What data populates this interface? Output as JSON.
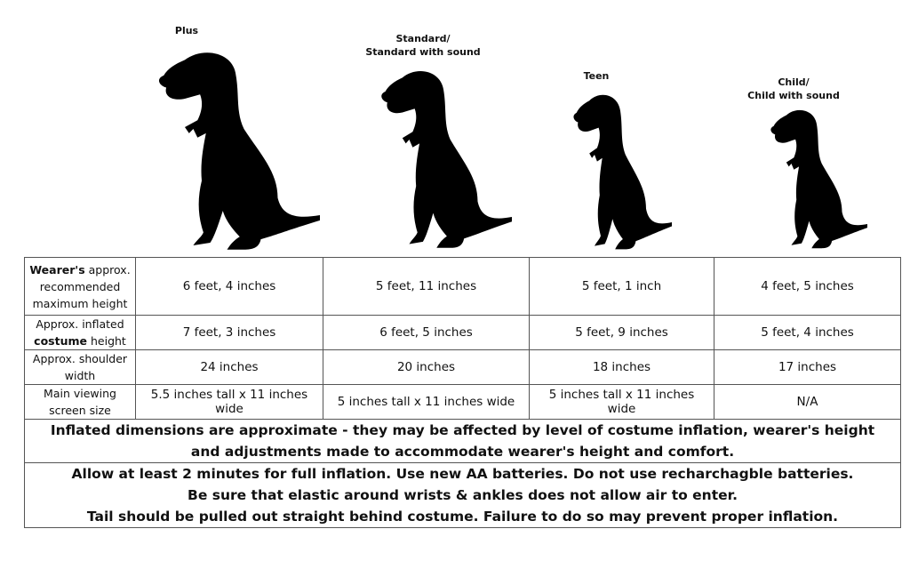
{
  "sizes": [
    {
      "label_lines": [
        "Plus"
      ]
    },
    {
      "label_lines": [
        "Standard/",
        "Standard with sound"
      ]
    },
    {
      "label_lines": [
        "Teen"
      ]
    },
    {
      "label_lines": [
        "Child/",
        "Child with sound"
      ]
    }
  ],
  "table": {
    "rows": [
      {
        "header": [
          {
            "text": "Wearer's",
            "bold": true
          },
          {
            "text": "approx. recommended maximum height",
            "bold": false
          }
        ],
        "cells": [
          "6 feet, 4 inches",
          "5 feet, 11 inches",
          "5 feet, 1 inch",
          "4 feet, 5 inches"
        ]
      },
      {
        "header": [
          {
            "text": "Approx. inflated",
            "bold": false
          },
          {
            "text": "costume",
            "bold": true
          },
          {
            "text": "height",
            "bold": false
          }
        ],
        "cells": [
          "7 feet, 3 inches",
          "6 feet, 5 inches",
          "5 feet, 9 inches",
          "5 feet, 4 inches"
        ]
      },
      {
        "header": [
          {
            "text": "Approx. shoulder width",
            "bold": false
          }
        ],
        "cells": [
          "24 inches",
          "20 inches",
          "18 inches",
          "17 inches"
        ]
      },
      {
        "header": [
          {
            "text": "Main viewing screen size",
            "bold": false
          }
        ],
        "cells": [
          "5.5 inches tall x 11 inches wide",
          "5 inches tall x 11 inches wide",
          "5 inches tall x 11 inches wide",
          "N/A"
        ]
      }
    ]
  },
  "notes": [
    [
      "Inflated dimensions are approximate - they may be affected by level of costume inflation, wearer's height",
      "and adjustments made to accommodate wearer's height and comfort."
    ],
    [
      "Allow at least 2 minutes for full inflation. Use new AA batteries. Do not use recharchagble batteries.",
      "Be sure that elastic around wrists & ankles does not allow air to enter.",
      "Tail should be pulled out straight behind costume. Failure to do so may prevent proper inflation."
    ]
  ]
}
